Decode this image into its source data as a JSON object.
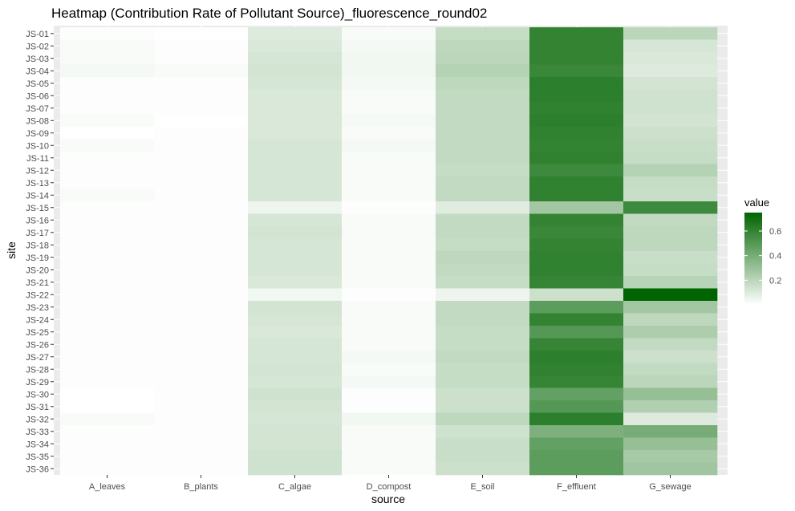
{
  "chart_data": {
    "type": "heatmap",
    "title": "Heatmap (Contribution Rate of Pollutant Source)_fluorescence_round02",
    "xlabel": "source",
    "ylabel": "site",
    "x_categories": [
      "A_leaves",
      "B_plants",
      "C_algae",
      "D_compost",
      "E_soil",
      "F_effluent",
      "G_sewage"
    ],
    "y_categories": [
      "JS-01",
      "JS-02",
      "JS-03",
      "JS-04",
      "JS-05",
      "JS-06",
      "JS-07",
      "JS-08",
      "JS-09",
      "JS-10",
      "JS-11",
      "JS-12",
      "JS-13",
      "JS-14",
      "JS-15",
      "JS-16",
      "JS-17",
      "JS-18",
      "JS-19",
      "JS-20",
      "JS-21",
      "JS-22",
      "JS-23",
      "JS-24",
      "JS-25",
      "JS-26",
      "JS-27",
      "JS-28",
      "JS-29",
      "JS-30",
      "JS-31",
      "JS-32",
      "JS-33",
      "JS-34",
      "JS-35",
      "JS-36"
    ],
    "values": [
      [
        0.01,
        0.0,
        0.1,
        0.02,
        0.17,
        0.6,
        0.2
      ],
      [
        0.02,
        0.01,
        0.11,
        0.03,
        0.19,
        0.6,
        0.12
      ],
      [
        0.02,
        0.01,
        0.12,
        0.04,
        0.2,
        0.6,
        0.11
      ],
      [
        0.03,
        0.02,
        0.13,
        0.04,
        0.22,
        0.58,
        0.1
      ],
      [
        0.01,
        0.01,
        0.12,
        0.03,
        0.19,
        0.62,
        0.13
      ],
      [
        0.01,
        0.01,
        0.11,
        0.02,
        0.18,
        0.62,
        0.14
      ],
      [
        0.01,
        0.01,
        0.11,
        0.02,
        0.18,
        0.61,
        0.14
      ],
      [
        0.02,
        0.0,
        0.11,
        0.03,
        0.18,
        0.62,
        0.13
      ],
      [
        0.0,
        0.01,
        0.11,
        0.02,
        0.18,
        0.61,
        0.15
      ],
      [
        0.02,
        0.01,
        0.12,
        0.03,
        0.18,
        0.6,
        0.16
      ],
      [
        0.01,
        0.01,
        0.12,
        0.02,
        0.18,
        0.61,
        0.17
      ],
      [
        0.01,
        0.01,
        0.12,
        0.02,
        0.17,
        0.57,
        0.22
      ],
      [
        0.01,
        0.01,
        0.12,
        0.02,
        0.18,
        0.61,
        0.17
      ],
      [
        0.02,
        0.01,
        0.12,
        0.02,
        0.18,
        0.61,
        0.16
      ],
      [
        0.01,
        0.01,
        0.05,
        0.01,
        0.09,
        0.27,
        0.57
      ],
      [
        0.01,
        0.01,
        0.12,
        0.02,
        0.18,
        0.6,
        0.18
      ],
      [
        0.01,
        0.01,
        0.13,
        0.02,
        0.18,
        0.58,
        0.19
      ],
      [
        0.01,
        0.01,
        0.12,
        0.02,
        0.17,
        0.6,
        0.19
      ],
      [
        0.01,
        0.01,
        0.12,
        0.02,
        0.19,
        0.61,
        0.16
      ],
      [
        0.01,
        0.01,
        0.12,
        0.02,
        0.18,
        0.61,
        0.17
      ],
      [
        0.01,
        0.01,
        0.11,
        0.02,
        0.17,
        0.59,
        0.21
      ],
      [
        0.01,
        0.01,
        0.04,
        0.01,
        0.05,
        0.15,
        0.75
      ],
      [
        0.01,
        0.01,
        0.13,
        0.02,
        0.18,
        0.48,
        0.27
      ],
      [
        0.01,
        0.01,
        0.12,
        0.02,
        0.18,
        0.6,
        0.19
      ],
      [
        0.01,
        0.01,
        0.11,
        0.02,
        0.17,
        0.5,
        0.24
      ],
      [
        0.01,
        0.01,
        0.12,
        0.02,
        0.17,
        0.59,
        0.18
      ],
      [
        0.01,
        0.01,
        0.12,
        0.03,
        0.18,
        0.62,
        0.15
      ],
      [
        0.01,
        0.01,
        0.13,
        0.02,
        0.17,
        0.61,
        0.18
      ],
      [
        0.01,
        0.01,
        0.12,
        0.03,
        0.17,
        0.59,
        0.2
      ],
      [
        0.0,
        0.01,
        0.14,
        0.01,
        0.15,
        0.46,
        0.31
      ],
      [
        0.0,
        0.01,
        0.13,
        0.01,
        0.15,
        0.5,
        0.23
      ],
      [
        0.02,
        0.01,
        0.12,
        0.04,
        0.19,
        0.62,
        0.1
      ],
      [
        0.01,
        0.01,
        0.13,
        0.02,
        0.14,
        0.38,
        0.4
      ],
      [
        0.01,
        0.01,
        0.13,
        0.02,
        0.16,
        0.46,
        0.31
      ],
      [
        0.01,
        0.01,
        0.14,
        0.02,
        0.16,
        0.48,
        0.26
      ],
      [
        0.01,
        0.01,
        0.14,
        0.02,
        0.15,
        0.48,
        0.28
      ]
    ],
    "legend": {
      "title": "value",
      "ticks": [
        0.2,
        0.4,
        0.6
      ],
      "tick_labels": [
        "0.2",
        "0.4",
        "0.6"
      ],
      "range": [
        0.0,
        0.75
      ],
      "low_color": "#ffffff",
      "high_color": "#006400",
      "placement": "right"
    },
    "panel_background": "#ebebeb",
    "grid": true
  }
}
